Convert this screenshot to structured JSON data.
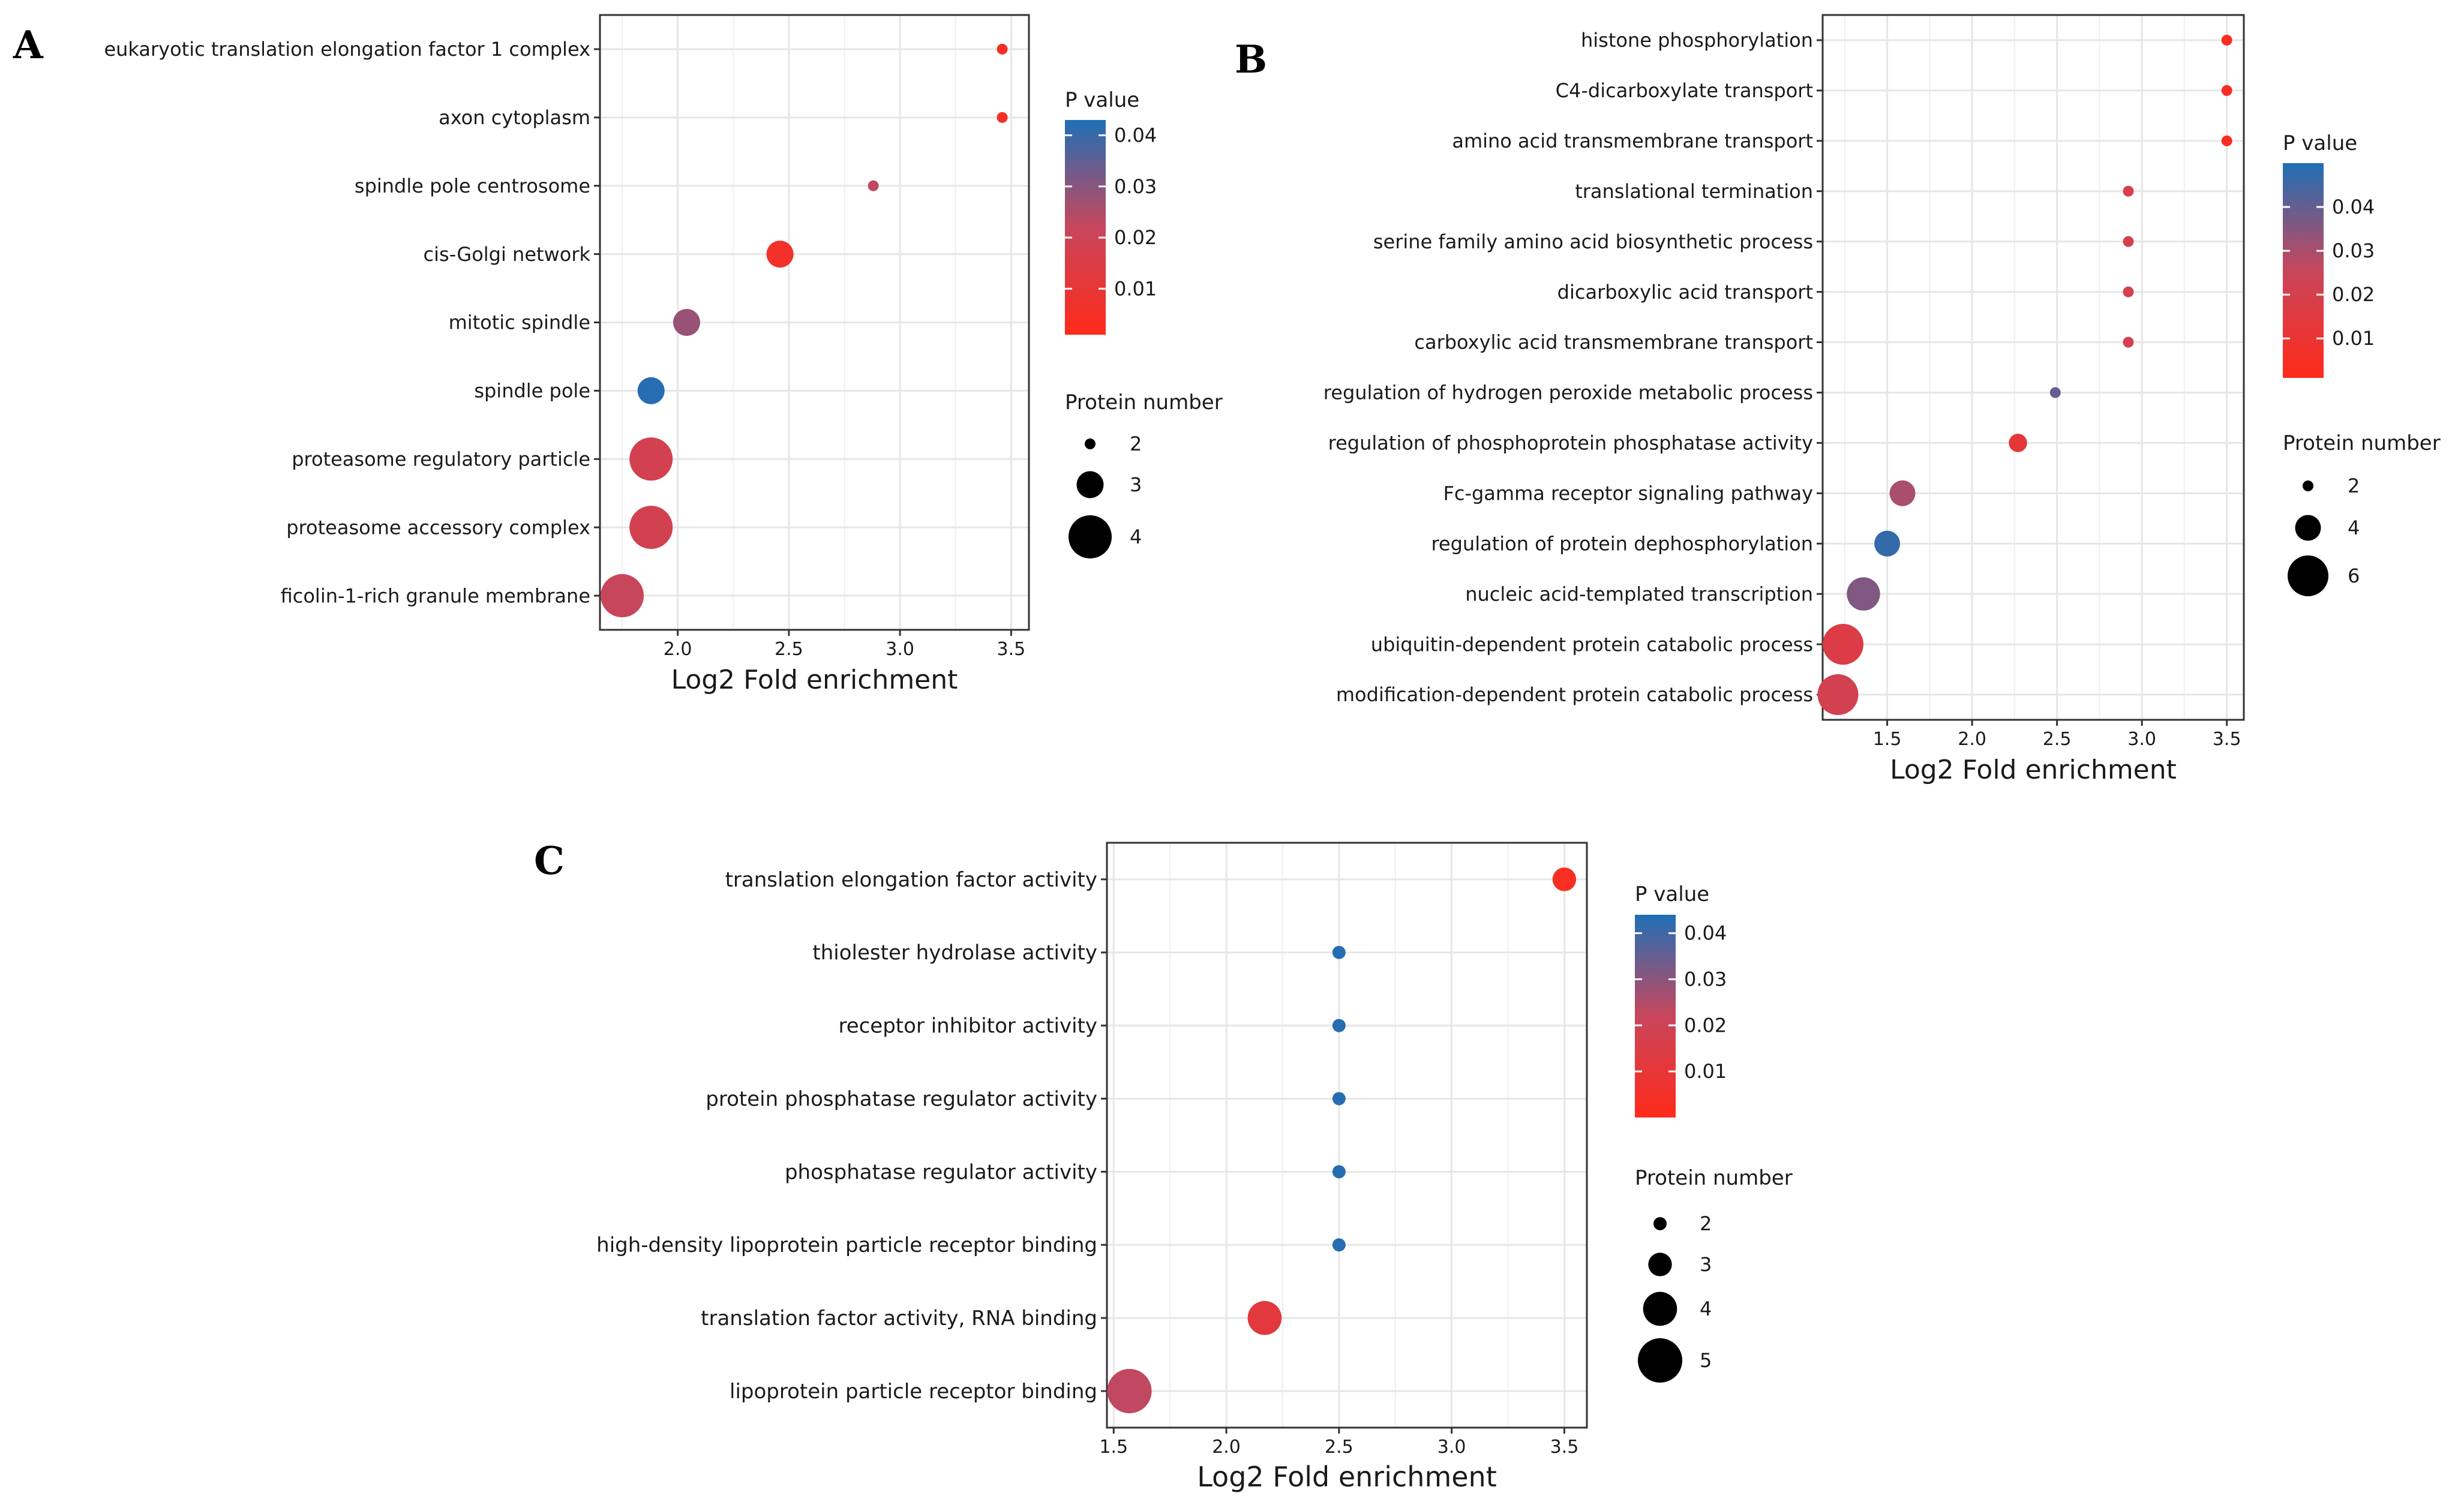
{
  "chart_data": [
    {
      "panel": "A",
      "type": "scatter",
      "xlabel": "Log2 Fold enrichment",
      "xticks": [
        2.0,
        2.5,
        3.0,
        3.5
      ],
      "xlim": [
        1.65,
        3.58
      ],
      "categories": [
        "eukaryotic translation elongation factor 1 complex",
        "axon cytoplasm",
        "spindle pole centrosome",
        "cis-Golgi network",
        "mitotic spindle",
        "spindle pole",
        "proteasome regulatory particle",
        "proteasome accessory complex",
        "ficolin-1-rich granule membrane"
      ],
      "points": [
        {
          "term": "eukaryotic translation elongation factor 1 complex",
          "x": 3.46,
          "count": 2,
          "p": 0.005
        },
        {
          "term": "axon cytoplasm",
          "x": 3.46,
          "count": 2,
          "p": 0.005
        },
        {
          "term": "spindle pole centrosome",
          "x": 2.88,
          "count": 2,
          "p": 0.023
        },
        {
          "term": "cis-Golgi network",
          "x": 2.46,
          "count": 3,
          "p": 0.006
        },
        {
          "term": "mitotic spindle",
          "x": 2.04,
          "count": 3,
          "p": 0.028
        },
        {
          "term": "spindle pole",
          "x": 1.88,
          "count": 3,
          "p": 0.042
        },
        {
          "term": "proteasome regulatory particle",
          "x": 1.88,
          "count": 4,
          "p": 0.018
        },
        {
          "term": "proteasome accessory complex",
          "x": 1.88,
          "count": 4,
          "p": 0.018
        },
        {
          "term": "ficolin-1-rich granule membrane",
          "x": 1.75,
          "count": 4,
          "p": 0.022
        }
      ],
      "legend": {
        "color_title": "P value",
        "color_ticks": [
          0.04,
          0.03,
          0.02,
          0.01
        ],
        "color_tick_labels": [
          "0.04",
          "0.03",
          "0.02",
          "0.01"
        ],
        "color_range": [
          0.001,
          0.043
        ],
        "size_title": "Protein number",
        "size_entries": [
          2,
          3,
          4
        ],
        "size_labels": [
          "2",
          "3",
          "4"
        ]
      }
    },
    {
      "panel": "B",
      "type": "scatter",
      "xlabel": "Log2 Fold enrichment",
      "xticks": [
        1.5,
        2.0,
        2.5,
        3.0,
        3.5
      ],
      "xlim": [
        1.12,
        3.6
      ],
      "categories": [
        "histone phosphorylation",
        "C4-dicarboxylate transport",
        "amino acid transmembrane transport",
        "translational termination",
        "serine family amino acid biosynthetic process",
        "dicarboxylic acid transport",
        "carboxylic acid transmembrane transport",
        "regulation of hydrogen peroxide metabolic process",
        "regulation of phosphoprotein phosphatase activity",
        "Fc-gamma receptor signaling pathway",
        "regulation of protein dephosphorylation",
        "nucleic acid-templated transcription",
        "ubiquitin-dependent protein catabolic process",
        "modification-dependent protein catabolic process"
      ],
      "points": [
        {
          "term": "histone phosphorylation",
          "x": 3.5,
          "count": 2,
          "p": 0.004
        },
        {
          "term": "C4-dicarboxylate transport",
          "x": 3.5,
          "count": 2,
          "p": 0.004
        },
        {
          "term": "amino acid transmembrane transport",
          "x": 3.5,
          "count": 2,
          "p": 0.004
        },
        {
          "term": "translational termination",
          "x": 2.92,
          "count": 2,
          "p": 0.02
        },
        {
          "term": "serine family amino acid biosynthetic process",
          "x": 2.92,
          "count": 2,
          "p": 0.02
        },
        {
          "term": "dicarboxylic acid transport",
          "x": 2.92,
          "count": 2,
          "p": 0.02
        },
        {
          "term": "carboxylic acid transmembrane transport",
          "x": 2.92,
          "count": 2,
          "p": 0.02
        },
        {
          "term": "regulation of hydrogen peroxide metabolic process",
          "x": 2.49,
          "count": 2,
          "p": 0.04
        },
        {
          "term": "regulation of phosphoprotein phosphatase activity",
          "x": 2.27,
          "count": 3,
          "p": 0.012
        },
        {
          "term": "Fc-gamma receptor signaling pathway",
          "x": 1.59,
          "count": 4,
          "p": 0.03
        },
        {
          "term": "regulation of protein dephosphorylation",
          "x": 1.5,
          "count": 4,
          "p": 0.047
        },
        {
          "term": "nucleic acid-templated transcription",
          "x": 1.36,
          "count": 5,
          "p": 0.036
        },
        {
          "term": "ubiquitin-dependent protein catabolic process",
          "x": 1.24,
          "count": 6,
          "p": 0.017
        },
        {
          "term": "modification-dependent protein catabolic process",
          "x": 1.21,
          "count": 6,
          "p": 0.021
        }
      ],
      "legend": {
        "color_title": "P value",
        "color_ticks": [
          0.04,
          0.03,
          0.02,
          0.01
        ],
        "color_tick_labels": [
          "0.04",
          "0.03",
          "0.02",
          "0.01"
        ],
        "color_range": [
          0.001,
          0.05
        ],
        "size_title": "Protein number",
        "size_entries": [
          2,
          4,
          6
        ],
        "size_labels": [
          "2",
          "4",
          "6"
        ]
      }
    },
    {
      "panel": "C",
      "type": "scatter",
      "xlabel": "Log2 Fold enrichment",
      "xticks": [
        1.5,
        2.0,
        2.5,
        3.0,
        3.5
      ],
      "xlim": [
        1.47,
        3.6
      ],
      "categories": [
        "translation elongation factor activity",
        "thiolester hydrolase activity",
        "receptor inhibitor activity",
        "protein phosphatase regulator activity",
        "phosphatase regulator activity",
        "high-density lipoprotein particle receptor binding",
        "translation factor activity, RNA binding",
        "lipoprotein particle receptor binding"
      ],
      "points": [
        {
          "term": "translation elongation factor activity",
          "x": 3.5,
          "count": 3,
          "p": 0.003
        },
        {
          "term": "thiolester hydrolase activity",
          "x": 2.5,
          "count": 2,
          "p": 0.043
        },
        {
          "term": "receptor inhibitor activity",
          "x": 2.5,
          "count": 2,
          "p": 0.043
        },
        {
          "term": "protein phosphatase regulator activity",
          "x": 2.5,
          "count": 2,
          "p": 0.043
        },
        {
          "term": "phosphatase regulator activity",
          "x": 2.5,
          "count": 2,
          "p": 0.043
        },
        {
          "term": "high-density lipoprotein particle receptor binding",
          "x": 2.5,
          "count": 2,
          "p": 0.043
        },
        {
          "term": "translation factor activity, RNA binding",
          "x": 2.17,
          "count": 4,
          "p": 0.012
        },
        {
          "term": "lipoprotein particle receptor binding",
          "x": 1.57,
          "count": 5,
          "p": 0.023
        }
      ],
      "legend": {
        "color_title": "P value",
        "color_ticks": [
          0.04,
          0.03,
          0.02,
          0.01
        ],
        "color_tick_labels": [
          "0.04",
          "0.03",
          "0.02",
          "0.01"
        ],
        "color_range": [
          0.0,
          0.044
        ],
        "size_title": "Protein number",
        "size_entries": [
          2,
          3,
          4,
          5
        ],
        "size_labels": [
          "2",
          "3",
          "4",
          "5"
        ]
      }
    }
  ],
  "colors": {
    "low_p": "#ff2a1a",
    "mid_p": "#c8465c",
    "high_p": "#1f6fb5",
    "grid": "#e6e6e6",
    "axis": "#333333"
  }
}
